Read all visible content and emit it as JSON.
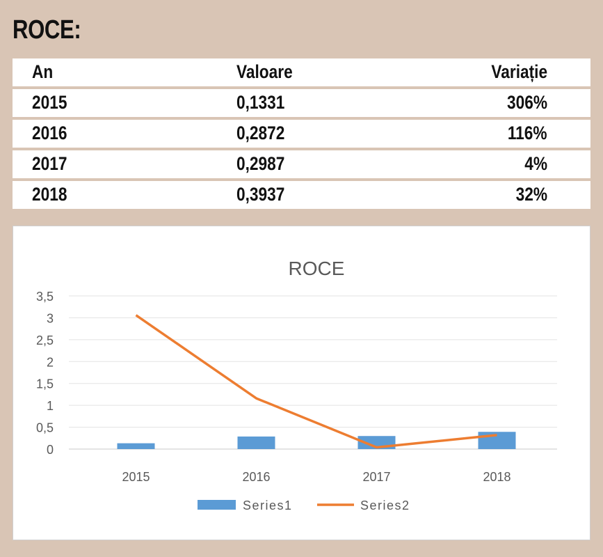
{
  "heading": "ROCE:",
  "table": {
    "headers": [
      "An",
      "Valoare",
      "Variație"
    ],
    "rows": [
      [
        "2015",
        "0,1331",
        "306%"
      ],
      [
        "2016",
        "0,2872",
        "116%"
      ],
      [
        "2017",
        "0,2987",
        "4%"
      ],
      [
        "2018",
        "0,3937",
        "32%"
      ]
    ]
  },
  "chart_data": {
    "type": "bar+line",
    "title": "ROCE",
    "categories": [
      "2015",
      "2016",
      "2017",
      "2018"
    ],
    "y_ticks": [
      "0",
      "0,5",
      "1",
      "1,5",
      "2",
      "2,5",
      "3",
      "3,5"
    ],
    "ylim": [
      0,
      3.5
    ],
    "grid": true,
    "legend_position": "bottom",
    "series": [
      {
        "name": "Series1",
        "type": "bar",
        "color": "#5b9bd5",
        "values": [
          0.1331,
          0.2872,
          0.2987,
          0.3937
        ]
      },
      {
        "name": "Series2",
        "type": "line",
        "color": "#ed7d31",
        "values": [
          3.06,
          1.16,
          0.04,
          0.32
        ]
      }
    ]
  }
}
